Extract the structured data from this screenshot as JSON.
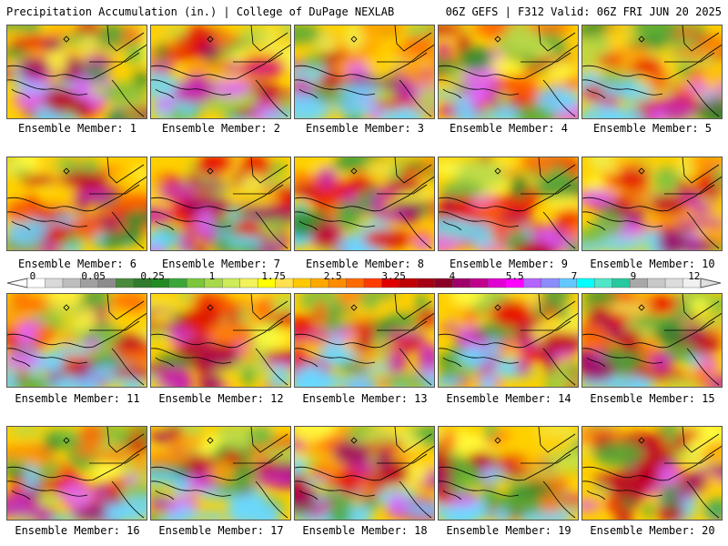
{
  "header": {
    "left_title": "Precipitation Accumulation (in.) | College of DuPage NEXLAB",
    "right_title": "06Z GEFS | F312 Valid: 06Z FRI JUN 20 2025"
  },
  "panel_label_prefix": "Ensemble Member:",
  "members": [
    1,
    2,
    3,
    4,
    5,
    6,
    7,
    8,
    9,
    10,
    11,
    12,
    13,
    14,
    15,
    16,
    17,
    18,
    19,
    20
  ],
  "colorbar": {
    "labels": [
      "0",
      "0.05",
      "0.25",
      "1",
      "1.75",
      "2.5",
      "3.25",
      "4",
      "5.5",
      "7",
      "9",
      "12"
    ],
    "colors": [
      "#ffffff",
      "#d9d9d9",
      "#bdbdbd",
      "#a0a0a0",
      "#8c8c8c",
      "#4a8a3c",
      "#2f7a2c",
      "#238b23",
      "#3aa63a",
      "#7cc63c",
      "#a6d84a",
      "#ccec5a",
      "#f2f25a",
      "#ffff00",
      "#ffe14d",
      "#ffc800",
      "#ffa800",
      "#ff8c00",
      "#ff6a00",
      "#ff3c00",
      "#e00000",
      "#c00000",
      "#a50014",
      "#8c0028",
      "#a0006a",
      "#c0008c",
      "#e000d2",
      "#ff00ff",
      "#b464ff",
      "#8c8cff",
      "#64c8ff",
      "#00ffff",
      "#50e6c8",
      "#28c8a0",
      "#a8a8a8",
      "#c8c8c8",
      "#dcdcdc",
      "#f0f0f0"
    ]
  },
  "map_palette": [
    "#2e8b2e",
    "#4ca83a",
    "#7ac040",
    "#b9d848",
    "#eef050",
    "#ffff40",
    "#ffd000",
    "#ffa000",
    "#ff6a00",
    "#e81000",
    "#c00020",
    "#a00060",
    "#c820b0",
    "#e060ff",
    "#6ad8ff"
  ]
}
